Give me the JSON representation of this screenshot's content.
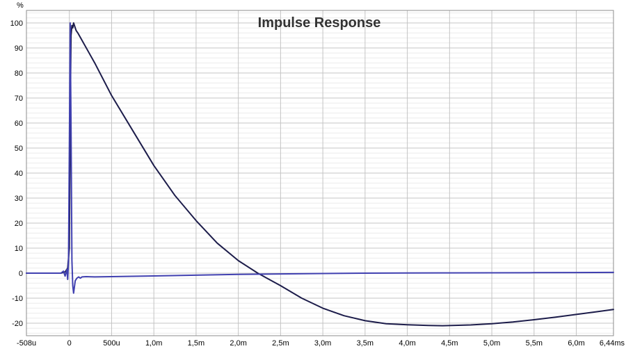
{
  "chart_data": {
    "type": "line",
    "title": "Impulse Response",
    "xlabel": "",
    "ylabel": "%",
    "x_unit_label": "ms",
    "xlim_ms": [
      -0.508,
      6.44
    ],
    "ylim": [
      -25,
      105
    ],
    "grid": true,
    "x_ticks": [
      {
        "value": -0.508,
        "label": "-508u"
      },
      {
        "value": 0,
        "label": "0"
      },
      {
        "value": 0.5,
        "label": "500u"
      },
      {
        "value": 1.0,
        "label": "1,0m"
      },
      {
        "value": 1.5,
        "label": "1,5m"
      },
      {
        "value": 2.0,
        "label": "2,0m"
      },
      {
        "value": 2.5,
        "label": "2,5m"
      },
      {
        "value": 3.0,
        "label": "3,0m"
      },
      {
        "value": 3.5,
        "label": "3,5m"
      },
      {
        "value": 4.0,
        "label": "4,0m"
      },
      {
        "value": 4.5,
        "label": "4,5m"
      },
      {
        "value": 5.0,
        "label": "5,0m"
      },
      {
        "value": 5.5,
        "label": "5,5m"
      },
      {
        "value": 6.0,
        "label": "6,0m"
      },
      {
        "value": 6.44,
        "label": "6,44ms"
      }
    ],
    "y_ticks": [
      100,
      90,
      80,
      70,
      60,
      50,
      40,
      30,
      20,
      10,
      0,
      -10,
      -20
    ],
    "series": [
      {
        "color": "#1c1c4a",
        "x": [
          -0.508,
          -0.1,
          -0.05,
          -0.02,
          0.0,
          0.01,
          0.02,
          0.03,
          0.04,
          0.05,
          0.06,
          0.08,
          0.1,
          0.3,
          0.5,
          0.75,
          1.0,
          1.25,
          1.5,
          1.75,
          2.0,
          2.23,
          2.5,
          2.75,
          3.0,
          3.25,
          3.5,
          3.75,
          4.0,
          4.25,
          4.42,
          4.75,
          5.0,
          5.25,
          5.5,
          5.75,
          6.0,
          6.25,
          6.44
        ],
        "values": [
          0,
          0,
          0.5,
          2,
          10,
          60,
          95,
          99,
          98,
          100,
          99,
          97,
          96,
          84,
          71,
          57,
          43,
          31,
          21,
          12,
          5,
          0,
          -5,
          -10,
          -14,
          -17,
          -19,
          -20.2,
          -20.6,
          -20.9,
          -21,
          -20.7,
          -20.2,
          -19.5,
          -18.6,
          -17.6,
          -16.5,
          -15.4,
          -14.5
        ]
      },
      {
        "color": "#4040b0",
        "x": [
          -0.508,
          -0.1,
          -0.07,
          -0.05,
          -0.03,
          -0.02,
          -0.01,
          0.0,
          0.01,
          0.02,
          0.03,
          0.04,
          0.05,
          0.07,
          0.09,
          0.11,
          0.13,
          0.15,
          0.2,
          0.3,
          0.5,
          1.0,
          1.5,
          2.0,
          2.5,
          3.0,
          3.5,
          4.0,
          4.5,
          5.0,
          5.5,
          6.0,
          6.44
        ],
        "values": [
          0,
          0,
          0.8,
          -1.2,
          1.5,
          -2.5,
          5,
          50,
          100,
          60,
          5,
          -5,
          -8,
          -3,
          -2,
          -1.5,
          -2,
          -1.5,
          -1.4,
          -1.5,
          -1.4,
          -1.1,
          -0.8,
          -0.5,
          -0.3,
          -0.15,
          0,
          0.05,
          0.1,
          0.15,
          0.2,
          0.25,
          0.3
        ]
      }
    ]
  }
}
